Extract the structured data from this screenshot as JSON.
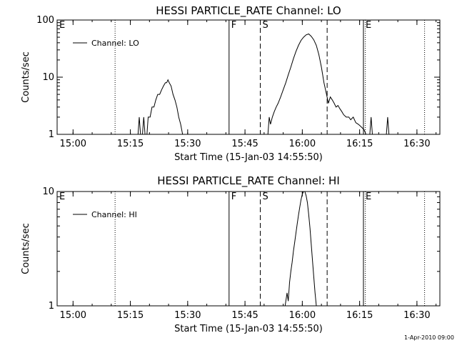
{
  "footer_text": "1-Apr-2010 09:00",
  "chart_data": [
    {
      "type": "line",
      "title": "HESSI PARTICLE_RATE Channel: LO",
      "xlabel": "Start Time (15-Jan-03 14:55:50)",
      "ylabel": "Counts/sec",
      "yscale": "log",
      "ylim": [
        1,
        100
      ],
      "xlim": [
        "14:55:50",
        "16:36:00"
      ],
      "xticks": [
        "15:00",
        "15:15",
        "15:30",
        "15:45",
        "16:00",
        "16:15",
        "16:30"
      ],
      "yticks": [
        "1",
        "10",
        "100"
      ],
      "legend": {
        "position": "top-left",
        "entries": [
          "Channel: LO"
        ]
      },
      "markers": [
        {
          "label": "E",
          "time": "14:55:50",
          "style": "solid"
        },
        {
          "label": "",
          "time": "15:11:00",
          "style": "dotted"
        },
        {
          "label": "F",
          "time": "15:40:50",
          "style": "solid"
        },
        {
          "label": "S",
          "time": "15:49:00",
          "style": "dashed"
        },
        {
          "label": "",
          "time": "16:06:30",
          "style": "dashed"
        },
        {
          "label": "E",
          "time": "16:16:00",
          "style": "solid"
        },
        {
          "label": "",
          "time": "16:16:30",
          "style": "dotted"
        },
        {
          "label": "",
          "time": "16:32:00",
          "style": "dotted"
        }
      ],
      "series": [
        {
          "name": "Channel: LO",
          "points": [
            [
              "15:17:00",
              1
            ],
            [
              "15:17:20",
              2
            ],
            [
              "15:17:40",
              1
            ],
            [
              "15:18:10",
              1
            ],
            [
              "15:18:30",
              2
            ],
            [
              "15:18:50",
              1
            ],
            [
              "15:19:20",
              1
            ],
            [
              "15:19:40",
              2
            ],
            [
              "15:20:10",
              2
            ],
            [
              "15:20:40",
              3
            ],
            [
              "15:21:10",
              3
            ],
            [
              "15:21:40",
              4
            ],
            [
              "15:22:10",
              5
            ],
            [
              "15:22:40",
              5
            ],
            [
              "15:23:10",
              6
            ],
            [
              "15:23:40",
              7
            ],
            [
              "15:24:10",
              8
            ],
            [
              "15:24:30",
              8
            ],
            [
              "15:24:50",
              9
            ],
            [
              "15:25:10",
              8
            ],
            [
              "15:25:40",
              7
            ],
            [
              "15:26:10",
              5
            ],
            [
              "15:26:40",
              4
            ],
            [
              "15:27:10",
              3
            ],
            [
              "15:27:40",
              2
            ],
            [
              "15:28:10",
              1.5
            ],
            [
              "15:28:40",
              1
            ],
            [
              "15:51:00",
              1
            ],
            [
              "15:51:20",
              2
            ],
            [
              "15:51:40",
              1.5
            ],
            [
              "15:52:10",
              2
            ],
            [
              "15:52:40",
              2.5
            ],
            [
              "15:53:10",
              3
            ],
            [
              "15:53:40",
              3.5
            ],
            [
              "15:54:20",
              4.5
            ],
            [
              "15:55:00",
              6
            ],
            [
              "15:55:40",
              8
            ],
            [
              "15:56:20",
              11
            ],
            [
              "15:57:00",
              15
            ],
            [
              "15:57:40",
              21
            ],
            [
              "15:58:20",
              28
            ],
            [
              "15:59:00",
              36
            ],
            [
              "15:59:40",
              44
            ],
            [
              "16:00:20",
              50
            ],
            [
              "16:01:00",
              55
            ],
            [
              "16:01:40",
              57
            ],
            [
              "16:02:20",
              52
            ],
            [
              "16:03:00",
              45
            ],
            [
              "16:03:40",
              36
            ],
            [
              "16:04:20",
              25
            ],
            [
              "16:05:00",
              15
            ],
            [
              "16:05:40",
              8
            ],
            [
              "16:06:20",
              5
            ],
            [
              "16:06:50",
              3.5
            ],
            [
              "16:07:20",
              4.5
            ],
            [
              "16:07:50",
              4
            ],
            [
              "16:08:20",
              3.5
            ],
            [
              "16:08:50",
              3
            ],
            [
              "16:09:20",
              3.2
            ],
            [
              "16:09:50",
              2.8
            ],
            [
              "16:10:20",
              2.5
            ],
            [
              "16:10:50",
              2.2
            ],
            [
              "16:11:30",
              2
            ],
            [
              "16:12:10",
              2
            ],
            [
              "16:12:40",
              1.8
            ],
            [
              "16:13:20",
              2
            ],
            [
              "16:14:00",
              1.6
            ],
            [
              "16:14:40",
              1.5
            ],
            [
              "16:15:10",
              1.4
            ],
            [
              "16:15:40",
              1.3
            ],
            [
              "16:16:10",
              1.2
            ],
            [
              "16:16:40",
              1
            ],
            [
              "16:17:40",
              1
            ],
            [
              "16:18:00",
              2
            ],
            [
              "16:18:20",
              1
            ],
            [
              "16:22:00",
              1
            ],
            [
              "16:22:20",
              2
            ],
            [
              "16:22:40",
              1
            ]
          ]
        }
      ]
    },
    {
      "type": "line",
      "title": "HESSI PARTICLE_RATE Channel: HI",
      "xlabel": "Start Time (15-Jan-03 14:55:50)",
      "ylabel": "Counts/sec",
      "yscale": "log",
      "ylim": [
        1,
        10
      ],
      "xlim": [
        "14:55:50",
        "16:36:00"
      ],
      "xticks": [
        "15:00",
        "15:15",
        "15:30",
        "15:45",
        "16:00",
        "16:15",
        "16:30"
      ],
      "yticks": [
        "1",
        "10"
      ],
      "legend": {
        "position": "top-left",
        "entries": [
          "Channel: HI"
        ]
      },
      "markers": [
        {
          "label": "E",
          "time": "14:55:50",
          "style": "solid"
        },
        {
          "label": "",
          "time": "15:11:00",
          "style": "dotted"
        },
        {
          "label": "F",
          "time": "15:40:50",
          "style": "solid"
        },
        {
          "label": "S",
          "time": "15:49:00",
          "style": "dashed"
        },
        {
          "label": "",
          "time": "16:06:30",
          "style": "dashed"
        },
        {
          "label": "E",
          "time": "16:16:00",
          "style": "solid"
        },
        {
          "label": "",
          "time": "16:16:30",
          "style": "dotted"
        },
        {
          "label": "",
          "time": "16:32:00",
          "style": "dotted"
        }
      ],
      "series": [
        {
          "name": "Channel: HI",
          "points": [
            [
              "15:55:30",
              1
            ],
            [
              "15:56:00",
              1.3
            ],
            [
              "15:56:20",
              1.1
            ],
            [
              "15:56:40",
              1.6
            ],
            [
              "15:57:00",
              2
            ],
            [
              "15:57:20",
              2.4
            ],
            [
              "15:57:40",
              3
            ],
            [
              "15:58:00",
              3.6
            ],
            [
              "15:58:20",
              4.3
            ],
            [
              "15:58:40",
              5.2
            ],
            [
              "15:59:00",
              6.2
            ],
            [
              "15:59:20",
              7.3
            ],
            [
              "15:59:40",
              8.5
            ],
            [
              "16:00:00",
              9.5
            ],
            [
              "16:00:20",
              10
            ],
            [
              "16:00:40",
              10
            ],
            [
              "16:01:00",
              9.2
            ],
            [
              "16:01:20",
              8
            ],
            [
              "16:01:40",
              6.3
            ],
            [
              "16:02:00",
              4.8
            ],
            [
              "16:02:20",
              3.5
            ],
            [
              "16:02:40",
              2.5
            ],
            [
              "16:03:00",
              1.8
            ],
            [
              "16:03:20",
              1.3
            ],
            [
              "16:03:40",
              1
            ]
          ]
        }
      ]
    }
  ]
}
